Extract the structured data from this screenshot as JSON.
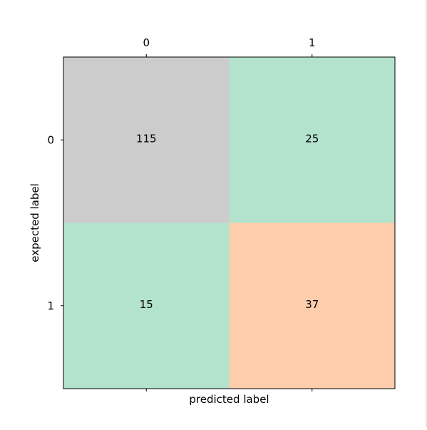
{
  "chart_data": {
    "type": "heatmap",
    "title": "",
    "xlabel": "predicted label",
    "ylabel": "expected label",
    "x_categories": [
      "0",
      "1"
    ],
    "y_categories": [
      "0",
      "1"
    ],
    "x_tick_position": "top",
    "values": [
      [
        115,
        25
      ],
      [
        15,
        37
      ]
    ],
    "cell_colors": [
      [
        "#cccccc",
        "#b3e2cd"
      ],
      [
        "#b3e2cd",
        "#fdcdac"
      ]
    ],
    "grid": false,
    "legend": "none"
  }
}
